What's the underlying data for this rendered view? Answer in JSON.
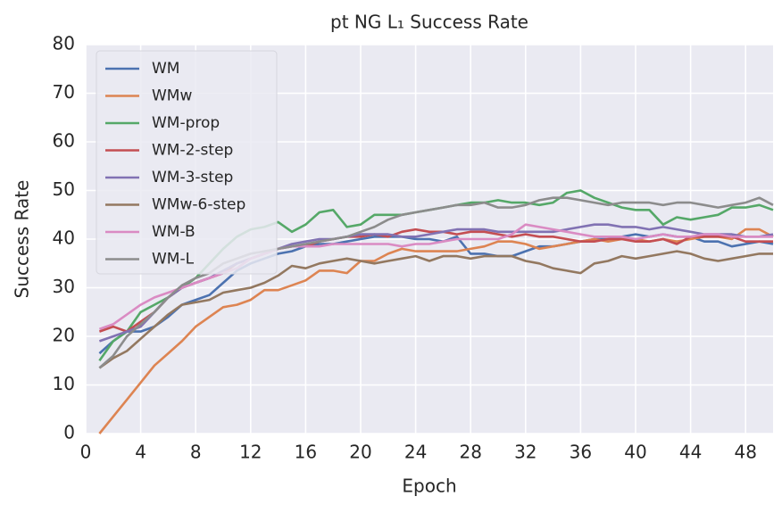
{
  "chart_data": {
    "type": "line",
    "title": "pt NG L₁ Success Rate",
    "x_label": "Epoch",
    "y_label": "Success Rate",
    "x": [
      1,
      2,
      3,
      4,
      5,
      6,
      7,
      8,
      9,
      10,
      11,
      12,
      13,
      14,
      15,
      16,
      17,
      18,
      19,
      20,
      21,
      22,
      23,
      24,
      25,
      26,
      27,
      28,
      29,
      30,
      31,
      32,
      33,
      34,
      35,
      36,
      37,
      38,
      39,
      40,
      41,
      42,
      43,
      44,
      45,
      46,
      47,
      48,
      49,
      50
    ],
    "xlim": [
      0,
      50
    ],
    "xticks": [
      0,
      4,
      8,
      12,
      16,
      20,
      24,
      28,
      32,
      36,
      40,
      44,
      48
    ],
    "ylim": [
      0,
      80
    ],
    "yticks": [
      0,
      10,
      20,
      30,
      40,
      50,
      60,
      70,
      80
    ],
    "grid": true,
    "legend": "upper left",
    "series": [
      {
        "name": "WM",
        "color": "#4c72b0",
        "values": [
          16.5,
          19,
          21,
          21,
          22,
          24,
          26.5,
          27.5,
          28.5,
          31,
          33.5,
          35,
          36,
          37,
          37.5,
          38.5,
          39,
          39,
          39.5,
          40,
          40.5,
          40.5,
          40.5,
          40,
          40,
          39.5,
          40.5,
          37,
          37,
          36.5,
          36.5,
          37.5,
          38.5,
          38.5,
          39,
          39.5,
          40,
          40,
          40.5,
          41,
          40.5,
          41,
          40.5,
          40.5,
          39.5,
          39.5,
          38.5,
          39,
          39.5,
          39
        ]
      },
      {
        "name": "WMw",
        "color": "#dd8452",
        "values": [
          0,
          3.5,
          7,
          10.5,
          14,
          16.5,
          19,
          22,
          24,
          26,
          26.5,
          27.5,
          29.5,
          29.5,
          30.5,
          31.5,
          33.5,
          33.5,
          33,
          35.5,
          35.5,
          37,
          38,
          37.5,
          37.5,
          37.5,
          37.5,
          38,
          38.5,
          39.5,
          39.5,
          39,
          38,
          38.5,
          39,
          39.5,
          40,
          39.5,
          40,
          40,
          39.5,
          40,
          39.5,
          40,
          40.5,
          40.5,
          40,
          42,
          42,
          40.5
        ]
      },
      {
        "name": "WM-prop",
        "color": "#55a868",
        "values": [
          15,
          19,
          21,
          25,
          26.5,
          28,
          30,
          32,
          35,
          38,
          40.5,
          42,
          42.5,
          43.5,
          41.5,
          43,
          45.5,
          46,
          42.5,
          43,
          45,
          45,
          45,
          45.5,
          46,
          46.5,
          47,
          47.5,
          47.5,
          48,
          47.5,
          47.5,
          47,
          47.5,
          49.5,
          50,
          48.5,
          47.5,
          46.5,
          46,
          46,
          43,
          44.5,
          44,
          44.5,
          45,
          46.5,
          46.5,
          47,
          46
        ]
      },
      {
        "name": "WM-2-step",
        "color": "#c44e52",
        "values": [
          21,
          22,
          21,
          23,
          25,
          28,
          30,
          31,
          32,
          33,
          35,
          36,
          37,
          38,
          38.5,
          38.5,
          39.5,
          40,
          40.5,
          40.5,
          41,
          40.5,
          41.5,
          42,
          41.5,
          41.5,
          41,
          41.5,
          41.5,
          41,
          40.5,
          41,
          40.5,
          40.5,
          40,
          39.5,
          39.5,
          40,
          40,
          39.5,
          39.5,
          40,
          39,
          40.5,
          40.5,
          40.5,
          40.5,
          39.5,
          39.5,
          39.5
        ]
      },
      {
        "name": "WM-3-step",
        "color": "#8172b3",
        "values": [
          19,
          20,
          21,
          22,
          25,
          28,
          30,
          31,
          32,
          33.5,
          35,
          36,
          37,
          38,
          39,
          39.5,
          40,
          40,
          40.5,
          41,
          41,
          41,
          40.5,
          40.5,
          41,
          41.5,
          42,
          42,
          42,
          41.5,
          41.5,
          41.5,
          41.5,
          41.5,
          42,
          42.5,
          43,
          43,
          42.5,
          42.5,
          42,
          42.5,
          42,
          41.5,
          41,
          41,
          41,
          40.5,
          40.5,
          41
        ]
      },
      {
        "name": "WMw-6-step",
        "color": "#937860",
        "values": [
          13.5,
          15.5,
          17,
          19.5,
          22,
          24.5,
          26.5,
          27,
          27.5,
          29,
          29.5,
          30,
          31,
          32.5,
          34.5,
          34,
          35,
          35.5,
          36,
          35.5,
          35,
          35.5,
          36,
          36.5,
          35.5,
          36.5,
          36.5,
          36,
          36.5,
          36.5,
          36.5,
          35.5,
          35,
          34,
          33.5,
          33,
          35,
          35.5,
          36.5,
          36,
          36.5,
          37,
          37.5,
          37,
          36,
          35.5,
          36,
          36.5,
          37,
          37
        ]
      },
      {
        "name": "WM-B",
        "color": "#da8bc3",
        "values": [
          21.5,
          22.5,
          24.5,
          26.5,
          28,
          29,
          30,
          31,
          32,
          33,
          34,
          36,
          37,
          38,
          38.5,
          38.5,
          38.5,
          39,
          39,
          39,
          39,
          39,
          38.5,
          39,
          39,
          39.5,
          40,
          40,
          40,
          40,
          41,
          43,
          42.5,
          42,
          41.5,
          41,
          40.5,
          40.5,
          40.5,
          40,
          40.5,
          41,
          40.5,
          40.5,
          41,
          41,
          40.5,
          40.5,
          40.5,
          40.5
        ]
      },
      {
        "name": "WM-L",
        "color": "#8c8c8c",
        "values": [
          13.5,
          16,
          20,
          22.5,
          25,
          28,
          30.5,
          32,
          33,
          35,
          36,
          37,
          37.5,
          38,
          38.5,
          39,
          39.5,
          40,
          40.5,
          41.5,
          42.5,
          44,
          45,
          45.5,
          46,
          46.5,
          47,
          47,
          47.5,
          46.5,
          46.5,
          47,
          48,
          48.5,
          48.5,
          48,
          47.5,
          47,
          47.5,
          47.5,
          47.5,
          47,
          47.5,
          47.5,
          47,
          46.5,
          47,
          47.5,
          48.5,
          47
        ]
      }
    ]
  }
}
